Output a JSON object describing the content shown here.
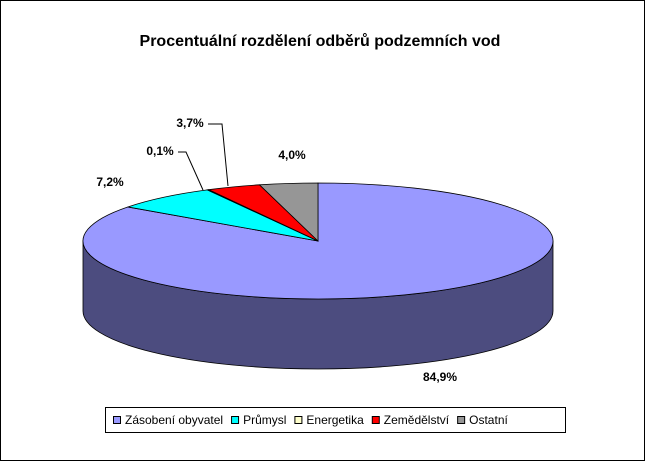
{
  "chart_data": {
    "type": "pie",
    "title": "Procentuální rozdělení odběrů podzemních vod",
    "categories": [
      "Zásobení obyvatel",
      "Průmysl",
      "Energetika",
      "Zemědělství",
      "Ostatní"
    ],
    "values": [
      84.9,
      7.2,
      0.1,
      3.7,
      4.0
    ],
    "value_labels": [
      "84,9%",
      "7,2%",
      "0,1%",
      "3,7%",
      "4,0%"
    ],
    "colors": [
      "#9999ff",
      "#00ffff",
      "#ffffcc",
      "#ff0000",
      "#969696"
    ],
    "legend": "bottom"
  }
}
